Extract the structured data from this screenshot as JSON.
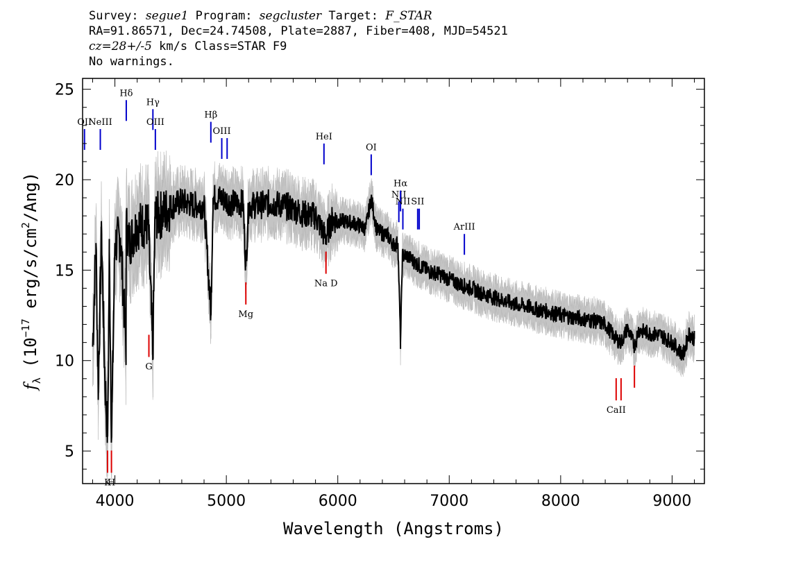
{
  "header": {
    "survey_label": "Survey:",
    "survey": "segue1",
    "program_label": "Program:",
    "program": "segcluster",
    "target_label": "Target:",
    "target": "F_STAR",
    "line2": "RA=91.86571, Dec=24.74508, Plate=2887, Fiber=408, MJD=54521",
    "cz": "cz=28+/-5",
    "cz_rest": " km/s Class=STAR F9",
    "line4": "No warnings."
  },
  "chart_data": {
    "type": "line",
    "xlabel": "Wavelength (Angstroms)",
    "ylabel_prefix": "f",
    "ylabel_sub": "λ",
    "ylabel_mid": " (10",
    "ylabel_sup": "−17",
    "ylabel_suffix": " erg/s/cm",
    "ylabel_sup2": "2",
    "ylabel_end": "/Ang)",
    "xlim": [
      3710,
      9290
    ],
    "ylim": [
      3.2,
      25.6
    ],
    "xticks": [
      4000,
      5000,
      6000,
      7000,
      8000,
      9000
    ],
    "yticks": [
      5,
      10,
      15,
      20,
      25
    ],
    "series": [
      {
        "role": "flux",
        "color": "#000000",
        "x": [
          3800,
          3830,
          3850,
          3880,
          3910,
          3935,
          3950,
          3970,
          4000,
          4050,
          4100,
          4101,
          4130,
          4200,
          4300,
          4340,
          4360,
          4400,
          4500,
          4600,
          4700,
          4800,
          4862,
          4880,
          4950,
          5050,
          5150,
          5175,
          5200,
          5300,
          5400,
          5500,
          5600,
          5700,
          5800,
          5890,
          5950,
          6050,
          6150,
          6250,
          6300,
          6350,
          6450,
          6500,
          6540,
          6563,
          6580,
          6620,
          6700,
          6800,
          6900,
          7000,
          7100,
          7200,
          7300,
          7400,
          7500,
          7600,
          7700,
          7800,
          7900,
          8000,
          8100,
          8200,
          8300,
          8400,
          8498,
          8542,
          8600,
          8662,
          8700,
          8800,
          8900,
          9000,
          9100,
          9150,
          9200
        ],
        "y": [
          10.8,
          16.5,
          8.5,
          17.0,
          9.0,
          5.8,
          16.0,
          5.7,
          16.5,
          16.8,
          10.8,
          17.5,
          16.5,
          17.5,
          17.5,
          10.2,
          18.0,
          18.0,
          18.5,
          18.8,
          18.6,
          18.6,
          12.5,
          19.0,
          19.0,
          18.7,
          18.7,
          15.2,
          18.6,
          18.6,
          18.7,
          18.6,
          18.4,
          18.1,
          18.0,
          16.8,
          17.8,
          17.7,
          17.6,
          17.3,
          19.0,
          17.2,
          16.9,
          16.4,
          16.5,
          11.0,
          15.8,
          15.8,
          15.4,
          15.0,
          14.8,
          14.5,
          14.2,
          14.0,
          13.7,
          13.5,
          13.3,
          13.1,
          13.0,
          12.8,
          12.7,
          12.5,
          12.4,
          12.3,
          12.2,
          12.0,
          11.2,
          11.0,
          11.8,
          10.8,
          11.7,
          11.5,
          11.4,
          11.0,
          10.3,
          11.5,
          11.2
        ]
      }
    ],
    "annotations": [
      {
        "label": "OII",
        "x": 3727,
        "color": "blue",
        "side": "top",
        "y": 22.8
      },
      {
        "label": "NeIII",
        "x": 3869,
        "color": "blue",
        "side": "top",
        "y": 22.8
      },
      {
        "label": "Hδ",
        "x": 4102,
        "color": "blue",
        "side": "top",
        "y": 24.4
      },
      {
        "label": "Hγ",
        "x": 4341,
        "color": "blue",
        "side": "top",
        "y": 23.9
      },
      {
        "label": "OIII",
        "x": 4363,
        "color": "blue",
        "side": "top",
        "y": 22.8
      },
      {
        "label": "Hβ",
        "x": 4861,
        "color": "blue",
        "side": "top",
        "y": 23.2
      },
      {
        "label": "OIII",
        "x": 4959,
        "color": "blue",
        "side": "top",
        "y": 22.3
      },
      {
        "label": "",
        "x": 5007,
        "color": "blue",
        "side": "top",
        "y": 22.3
      },
      {
        "label": "HeI",
        "x": 5876,
        "color": "blue",
        "side": "top",
        "y": 22.0
      },
      {
        "label": "OI",
        "x": 6300,
        "color": "blue",
        "side": "top",
        "y": 21.4
      },
      {
        "label": "NII",
        "x": 6548,
        "color": "blue",
        "side": "top",
        "y": 18.8
      },
      {
        "label": "Hα",
        "x": 6563,
        "color": "blue",
        "side": "top",
        "y": 19.4
      },
      {
        "label": "NII",
        "x": 6584,
        "color": "blue",
        "side": "top",
        "y": 18.4
      },
      {
        "label": "SII",
        "x": 6717,
        "color": "blue",
        "side": "top",
        "y": 18.4
      },
      {
        "label": "",
        "x": 6731,
        "color": "blue",
        "side": "top",
        "y": 18.4
      },
      {
        "label": "ArIII",
        "x": 7136,
        "color": "blue",
        "side": "top",
        "y": 17.0
      },
      {
        "label": "K",
        "x": 3934,
        "color": "red",
        "side": "bottom",
        "y": 3.8
      },
      {
        "label": "H",
        "x": 3969,
        "color": "red",
        "side": "bottom",
        "y": 3.8
      },
      {
        "label": "G",
        "x": 4305,
        "color": "red",
        "side": "bottom",
        "y": 10.2
      },
      {
        "label": "Mg",
        "x": 5175,
        "color": "red",
        "side": "bottom",
        "y": 13.1
      },
      {
        "label": "Na D",
        "x": 5894,
        "color": "red",
        "side": "bottom",
        "y": 14.8
      },
      {
        "label": "CaII",
        "x": 8498,
        "color": "red",
        "side": "bottom",
        "y": 7.8
      },
      {
        "label": "",
        "x": 8542,
        "color": "red",
        "side": "bottom",
        "y": 7.8
      },
      {
        "label": "",
        "x": 8662,
        "color": "red",
        "side": "bottom",
        "y": 8.5
      }
    ]
  }
}
